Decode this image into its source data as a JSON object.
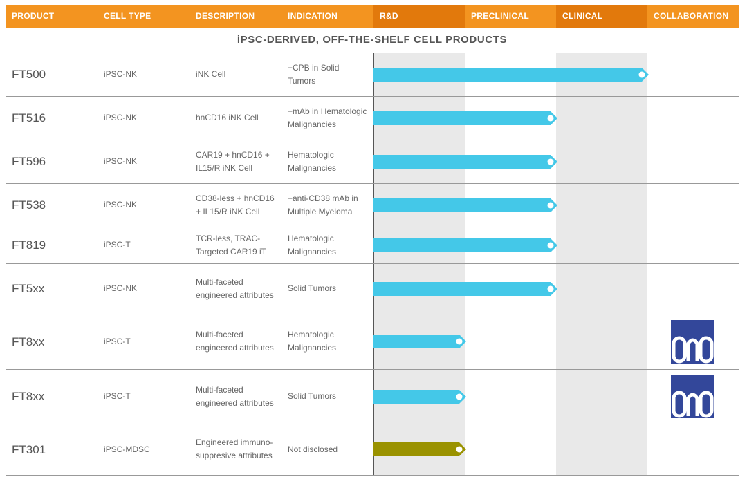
{
  "headers": {
    "product": "PRODUCT",
    "cell_type": "CELL TYPE",
    "description": "DESCRIPTION",
    "indication": "INDICATION",
    "rnd": "R&D",
    "preclinical": "PRECLINICAL",
    "clinical": "CLINICAL",
    "collaboration": "COLLABORATION"
  },
  "section_title": "iPSC-DERIVED, OFF-THE-SHELF CELL PRODUCTS",
  "colors": {
    "header_light": "#f39420",
    "header_dark": "#e2790c",
    "bar_blue": "#44c8e8",
    "bar_olive": "#9a9200",
    "shade": "#e9e9e9",
    "ono_blue": "#33479a"
  },
  "chart_data": {
    "type": "table",
    "stages": [
      "R&D",
      "PRECLINICAL",
      "CLINICAL"
    ],
    "rows": [
      {
        "product": "FT500",
        "cell_type": "iPSC-NK",
        "description": "iNK Cell",
        "indication": "+CPB in Solid Tumors",
        "stage": "CLINICAL",
        "progress": 3.0,
        "bar_color": "blue",
        "collaboration": ""
      },
      {
        "product": "FT516",
        "cell_type": "iPSC-NK",
        "description": "hnCD16 iNK Cell",
        "indication": "+mAb in Hematologic Malignancies",
        "stage": "PRECLINICAL",
        "progress": 2.0,
        "bar_color": "blue",
        "collaboration": ""
      },
      {
        "product": "FT596",
        "cell_type": "iPSC-NK",
        "description": "CAR19 + hnCD16 + IL15/R iNK Cell",
        "indication": "Hematologic Malignancies",
        "stage": "PRECLINICAL",
        "progress": 2.0,
        "bar_color": "blue",
        "collaboration": ""
      },
      {
        "product": "FT538",
        "cell_type": "iPSC-NK",
        "description": "CD38-less + hnCD16 + IL15/R iNK Cell",
        "indication": "+anti-CD38 mAb in Multiple Myeloma",
        "stage": "PRECLINICAL",
        "progress": 2.0,
        "bar_color": "blue",
        "collaboration": ""
      },
      {
        "product": "FT819",
        "cell_type": "iPSC-T",
        "description": "TCR-less, TRAC-Targeted CAR19 iT",
        "indication": "Hematologic Malignancies",
        "stage": "PRECLINICAL",
        "progress": 2.0,
        "bar_color": "blue",
        "collaboration": ""
      },
      {
        "product": "FT5xx",
        "cell_type": "iPSC-NK",
        "description": "Multi-faceted engineered attributes",
        "indication": "Solid Tumors",
        "stage": "PRECLINICAL",
        "progress": 2.0,
        "bar_color": "blue",
        "collaboration": ""
      },
      {
        "product": "FT8xx",
        "cell_type": "iPSC-T",
        "description": "Multi-faceted engineered attributes",
        "indication": "Hematologic Malignancies",
        "stage": "R&D",
        "progress": 1.0,
        "bar_color": "blue",
        "collaboration": "ono"
      },
      {
        "product": "FT8xx",
        "cell_type": "iPSC-T",
        "description": "Multi-faceted engineered attributes",
        "indication": "Solid Tumors",
        "stage": "R&D",
        "progress": 1.0,
        "bar_color": "blue",
        "collaboration": "ono"
      },
      {
        "product": "FT301",
        "cell_type": "iPSC-MDSC",
        "description": "Engineered immuno-suppresive attributes",
        "indication": "Not disclosed",
        "stage": "R&D",
        "progress": 1.0,
        "bar_color": "olive",
        "collaboration": ""
      }
    ]
  },
  "collaborators": {
    "ono": {
      "name": "ONO",
      "logo_text": "ONO"
    }
  }
}
